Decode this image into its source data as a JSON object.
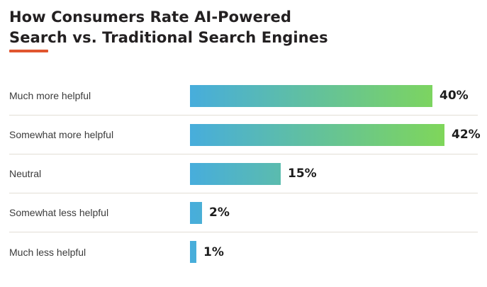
{
  "header": {
    "title_line1": "How Consumers Rate AI-Powered",
    "title_line2": "Search vs. Traditional Search Engines"
  },
  "accent_color": "#e1562f",
  "chart_data": {
    "type": "bar",
    "orientation": "horizontal",
    "title": "How Consumers Rate AI-Powered Search vs. Traditional Search Engines",
    "categories": [
      "Much more helpful",
      "Somewhat more helpful",
      "Neutral",
      "Somewhat less helpful",
      "Much less helpful"
    ],
    "values": [
      40,
      42,
      15,
      2,
      1
    ],
    "value_labels": [
      "40%",
      "42%",
      "15%",
      "2%",
      "1%"
    ],
    "xlabel": "",
    "ylabel": "",
    "xlim": [
      0,
      42
    ],
    "grid": false,
    "legend": false,
    "bar_gradient": {
      "start": "#47addc",
      "end": "#7fd65a"
    },
    "divider_color": "#e2ded5"
  }
}
